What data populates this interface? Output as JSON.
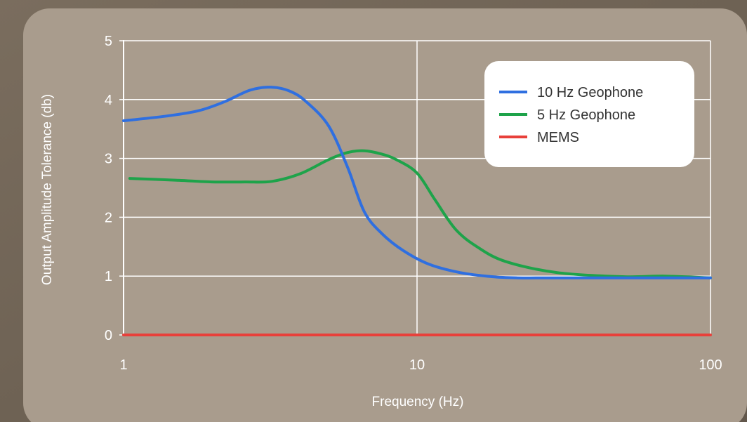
{
  "chart_data": {
    "type": "line",
    "title": "",
    "xlabel": "Frequency  (Hz)",
    "ylabel": "Output Amplitude Tolerance (db)",
    "xscale": "log",
    "xlim": [
      1,
      100
    ],
    "ylim": [
      0,
      5
    ],
    "xticks": [
      1,
      10,
      100
    ],
    "xtick_labels": [
      "1",
      "10",
      "100"
    ],
    "yticks": [
      0,
      1,
      2,
      3,
      4,
      5
    ],
    "ytick_labels": [
      "0",
      "1",
      "2",
      "3",
      "4",
      "5"
    ],
    "grid": true,
    "legend_position": "top-right",
    "series": [
      {
        "name": "10 Hz Geophone",
        "color": "#2f6fe0",
        "x": [
          1,
          1.4,
          1.8,
          2.2,
          2.7,
          3.2,
          3.7,
          4.2,
          5.0,
          5.8,
          6.6,
          7.6,
          9.0,
          11,
          14,
          18,
          22,
          30,
          50,
          100
        ],
        "y": [
          3.64,
          3.72,
          3.81,
          3.96,
          4.16,
          4.21,
          4.14,
          3.96,
          3.55,
          2.85,
          2.1,
          1.72,
          1.43,
          1.2,
          1.06,
          0.99,
          0.97,
          0.97,
          0.97,
          0.97
        ]
      },
      {
        "name": "5 Hz Geophone",
        "color": "#1ea34a",
        "x": [
          1.05,
          1.5,
          2.0,
          2.6,
          3.2,
          4.0,
          5.0,
          5.8,
          6.6,
          7.5,
          8.5,
          10,
          11.5,
          13.5,
          16,
          20,
          30,
          50,
          70,
          100
        ],
        "y": [
          2.66,
          2.63,
          2.6,
          2.6,
          2.61,
          2.74,
          2.98,
          3.1,
          3.13,
          3.08,
          2.98,
          2.75,
          2.3,
          1.8,
          1.5,
          1.25,
          1.06,
          0.99,
          1.0,
          0.97
        ]
      },
      {
        "name": "MEMS",
        "color": "#e8403a",
        "x": [
          1,
          100
        ],
        "y": [
          0,
          0
        ]
      }
    ]
  }
}
